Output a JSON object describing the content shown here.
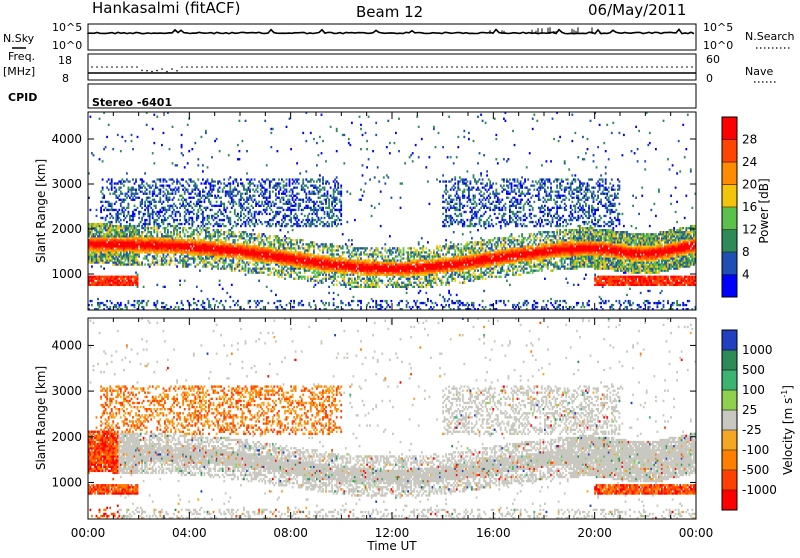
{
  "header": {
    "station": "Hankasalmi (fitACF)",
    "beam": "Beam 12",
    "date": "06/May/2011"
  },
  "status_panels": {
    "sky_label": "N.Sky",
    "search_label": "N.Search",
    "freq_label": "Freq.",
    "freq_unit": "[MHz]",
    "nave_label": "Nave",
    "cpid_label": "CPID",
    "cpid_text": "Stereo -6401",
    "sky_ticks": [
      "10^5",
      "10^0"
    ],
    "search_ticks": [
      "10^5",
      "10^0"
    ],
    "freq_ticks": [
      "18",
      "8"
    ],
    "nave_ticks": [
      "60",
      "0"
    ]
  },
  "chart_data": [
    {
      "type": "heatmap",
      "name": "power",
      "xlabel": "Time UT",
      "ylabel": "Slant Range [km]",
      "x_ticks": [
        "00:00",
        "04:00",
        "08:00",
        "12:00",
        "16:00",
        "20:00",
        "00:00"
      ],
      "xlim_hours": [
        0,
        24
      ],
      "ylim": [
        200,
        4600
      ],
      "y_ticks": [
        "1000",
        "2000",
        "3000",
        "4000"
      ],
      "colorbar": {
        "label": "Power [dB]",
        "ticks": [
          "4",
          "8",
          "12",
          "16",
          "20",
          "24",
          "28"
        ],
        "range": [
          0,
          30
        ],
        "colors": [
          "#0000ff",
          "#1f4fb4",
          "#2e8b57",
          "#5cc04c",
          "#f2c40c",
          "#ff8c00",
          "#ff4500",
          "#ff0000"
        ]
      }
    },
    {
      "type": "heatmap",
      "name": "velocity",
      "xlabel": "Time UT",
      "ylabel": "Slant Range [km]",
      "x_ticks": [
        "00:00",
        "04:00",
        "08:00",
        "12:00",
        "16:00",
        "20:00",
        "00:00"
      ],
      "xlim_hours": [
        0,
        24
      ],
      "ylim": [
        200,
        4600
      ],
      "y_ticks": [
        "1000",
        "2000",
        "3000",
        "4000"
      ],
      "colorbar": {
        "label": "Velocity [m s",
        "label_sup": "-1",
        "label_end": "]",
        "ticks": [
          "1000",
          "500",
          "100",
          "25",
          "-25",
          "-100",
          "-500",
          "-1000"
        ],
        "colors": [
          "#2040c0",
          "#2e8b57",
          "#3cb371",
          "#8fd14f",
          "#c8c8c0",
          "#f5a623",
          "#ff7f00",
          "#ff4000",
          "#ff0000"
        ]
      }
    }
  ]
}
